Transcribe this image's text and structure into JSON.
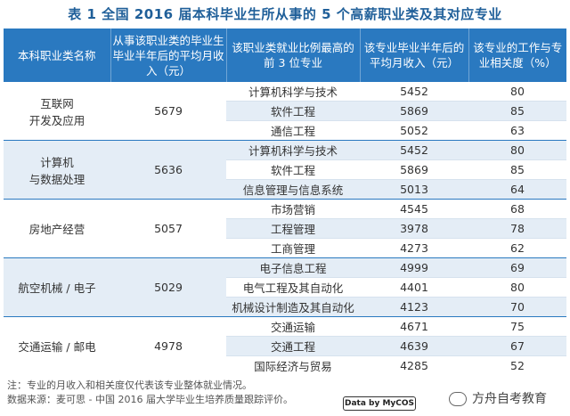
{
  "title": "表 1  全国 2016 届本科毕业生所从事的 5 个高薪职业类及其对应专业",
  "headers": [
    "本科职业类名称",
    "从事该职业类的毕业生毕业半年后的平均月收入（元）",
    "该职业类就业比例最高的前 3 位专业",
    "该专业毕业半年后的平均月收入（元）",
    "该专业的工作与专业相关度（%）"
  ],
  "groups": [
    {
      "name": "互联网\n开发及应用",
      "income": "5679",
      "rows": [
        {
          "major": "计算机科学与技术",
          "income": "5452",
          "rel": "80"
        },
        {
          "major": "软件工程",
          "income": "5869",
          "rel": "85"
        },
        {
          "major": "通信工程",
          "income": "5052",
          "rel": "63"
        }
      ]
    },
    {
      "name": "计算机\n与数据处理",
      "income": "5636",
      "rows": [
        {
          "major": "计算机科学与技术",
          "income": "5452",
          "rel": "80"
        },
        {
          "major": "软件工程",
          "income": "5869",
          "rel": "85"
        },
        {
          "major": "信息管理与信息系统",
          "income": "5013",
          "rel": "64"
        }
      ]
    },
    {
      "name": "房地产经营",
      "income": "5057",
      "rows": [
        {
          "major": "市场营销",
          "income": "4545",
          "rel": "68"
        },
        {
          "major": "工程管理",
          "income": "3978",
          "rel": "78"
        },
        {
          "major": "工商管理",
          "income": "4273",
          "rel": "62"
        }
      ]
    },
    {
      "name": "航空机械 / 电子",
      "income": "5029",
      "rows": [
        {
          "major": "电子信息工程",
          "income": "4999",
          "rel": "69"
        },
        {
          "major": "电气工程及其自动化",
          "income": "4401",
          "rel": "80"
        },
        {
          "major": "机械设计制造及其自动化",
          "income": "4123",
          "rel": "70"
        }
      ]
    },
    {
      "name": "交通运输 / 邮电",
      "income": "4978",
      "rows": [
        {
          "major": "交通运输",
          "income": "4671",
          "rel": "75"
        },
        {
          "major": "交通工程",
          "income": "4639",
          "rel": "67"
        },
        {
          "major": "国际经济与贸易",
          "income": "4285",
          "rel": "52"
        }
      ]
    }
  ],
  "note": "注：专业的月收入和相关度仅代表该专业整体就业情况。",
  "source": "数据来源：麦可思 - 中国 2016 届大学毕业生培养质量跟踪评价。",
  "logo_text": "Data by MyCOS",
  "wechat_label": "方舟自考教育"
}
